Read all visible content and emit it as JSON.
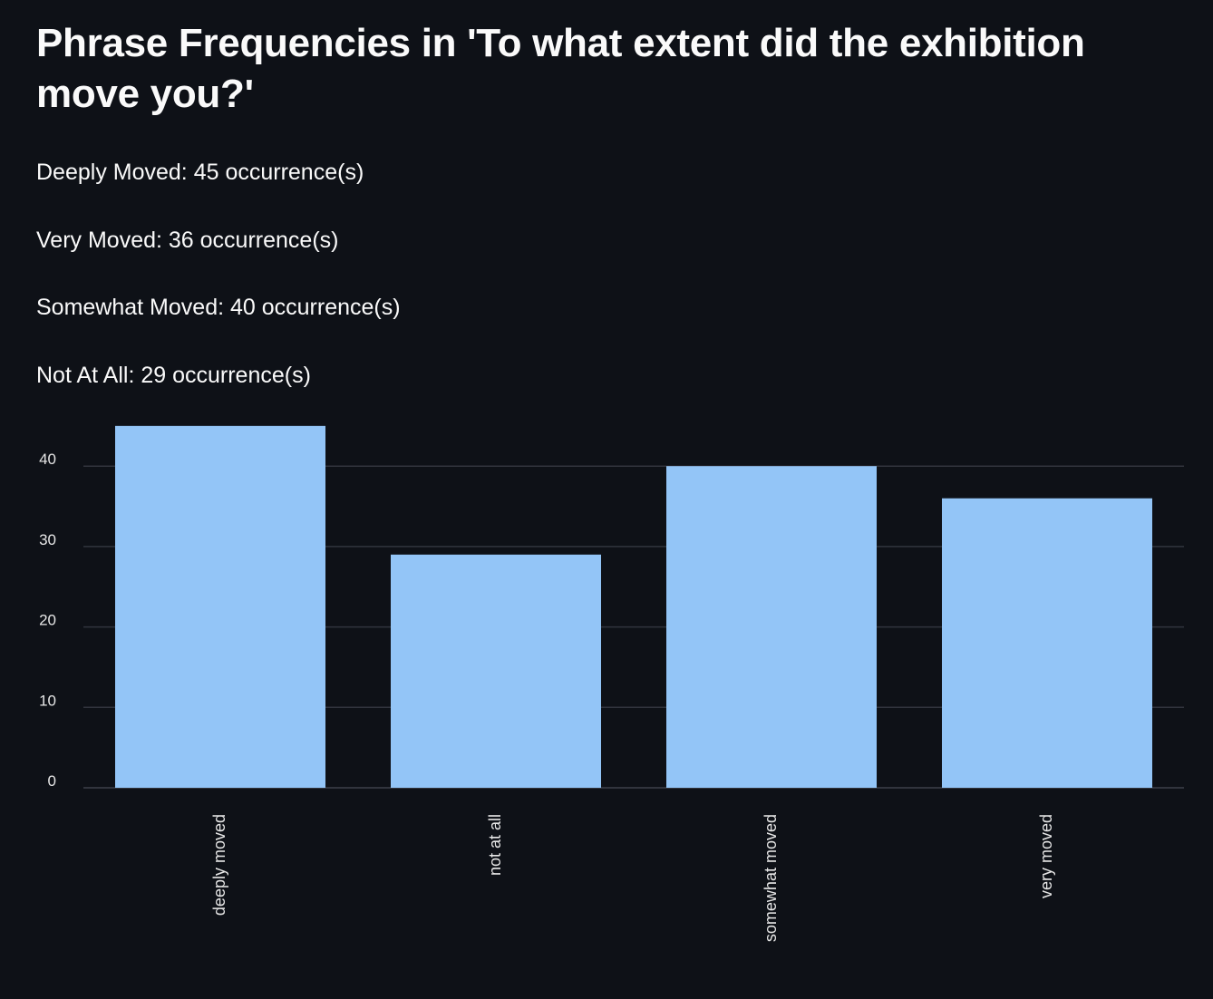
{
  "title": "Phrase Frequencies in 'To what extent did the exhibition move you?'",
  "frequency_lines": [
    "Deeply Moved: 45 occurrence(s)",
    "Very Moved: 36 occurrence(s)",
    "Somewhat Moved: 40 occurrence(s)",
    "Not At All: 29 occurrence(s)"
  ],
  "colors": {
    "background": "#0e1117",
    "bar": "#93c5f7",
    "grid": "#31343d",
    "text": "#fafafa"
  },
  "chart_data": {
    "type": "bar",
    "categories": [
      "deeply moved",
      "not at all",
      "somewhat moved",
      "very moved"
    ],
    "values": [
      45,
      29,
      40,
      36
    ],
    "yticks": [
      0,
      10,
      20,
      30,
      40
    ],
    "ylim": [
      0,
      45
    ],
    "grid": true,
    "xlabel": "",
    "ylabel": ""
  }
}
